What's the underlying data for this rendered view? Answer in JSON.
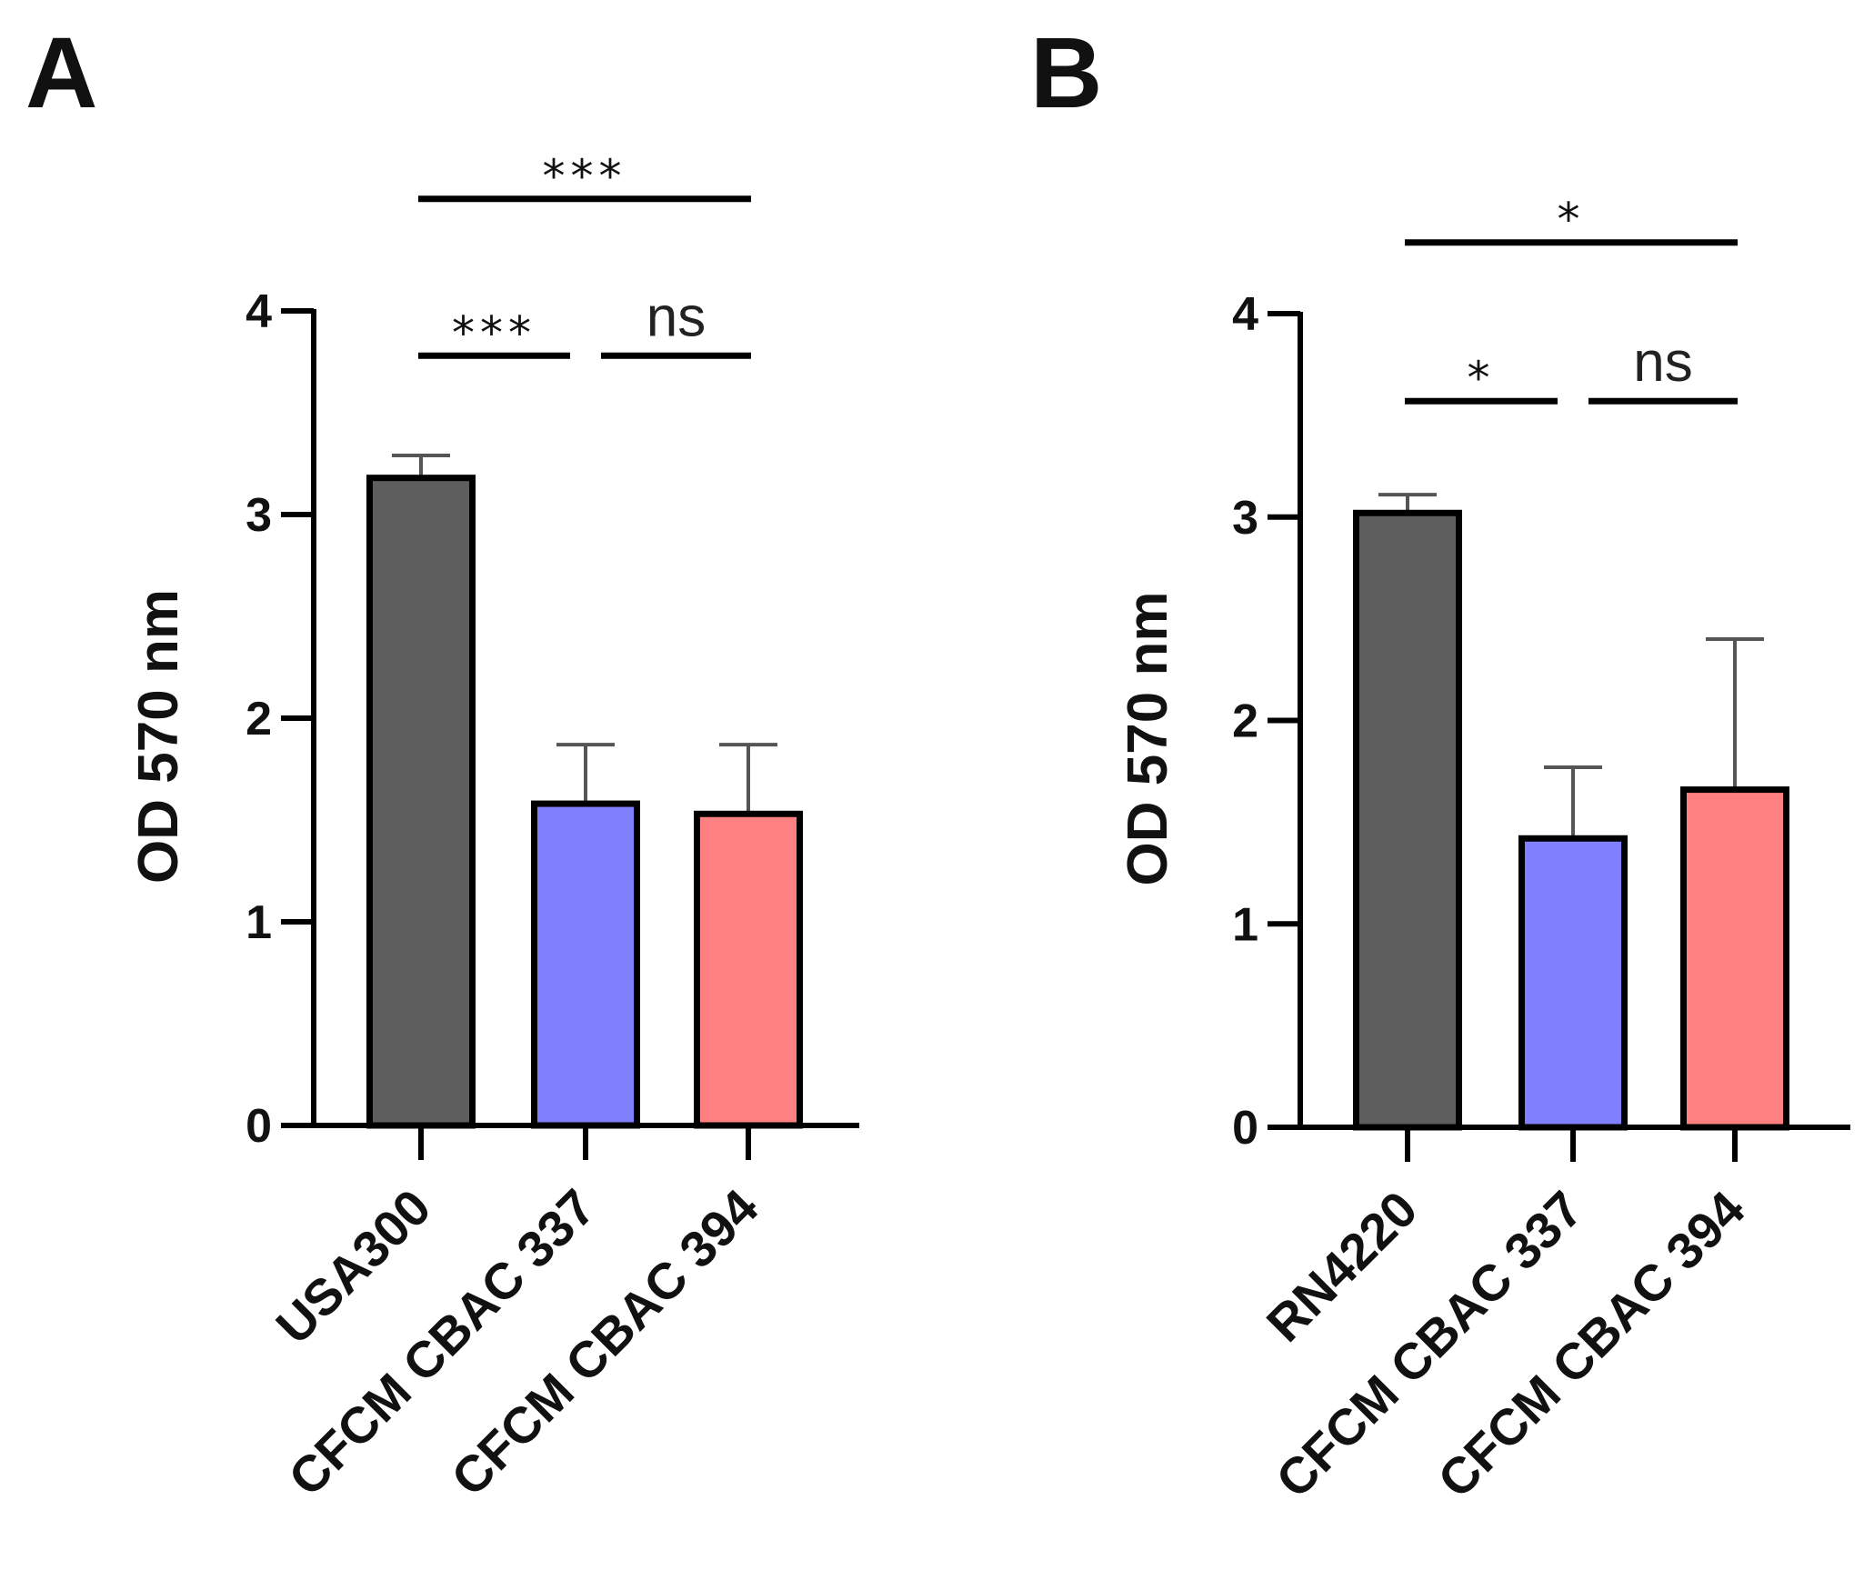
{
  "chart_data": [
    {
      "type": "bar",
      "panel_label": "A",
      "ylabel": "OD 570 nm",
      "ylim": [
        0,
        4
      ],
      "yticks": [
        "0",
        "1",
        "2",
        "3",
        "4"
      ],
      "categories": [
        "USA300",
        "CFCM CBAC 337",
        "CFCM CBAC 394"
      ],
      "values": [
        3.18,
        1.58,
        1.53
      ],
      "errors": [
        0.11,
        0.29,
        0.34
      ],
      "colors": [
        "#5e5e5e",
        "#8080ff",
        "#ff8080"
      ],
      "significance": [
        {
          "from": 0,
          "to": 2,
          "label": "***",
          "level": 4.55
        },
        {
          "from": 0,
          "to": 1,
          "label": "***",
          "level": 3.78
        },
        {
          "from": 1,
          "to": 2,
          "label": "ns",
          "level": 3.78
        }
      ]
    },
    {
      "type": "bar",
      "panel_label": "B",
      "ylabel": "OD 570 nm",
      "ylim": [
        0,
        4
      ],
      "yticks": [
        "0",
        "1",
        "2",
        "3",
        "4"
      ],
      "categories": [
        "RN4220",
        "CFCM CBAC 337",
        "CFCM CBAC 394"
      ],
      "values": [
        3.02,
        1.42,
        1.66
      ],
      "errors": [
        0.09,
        0.35,
        0.74
      ],
      "colors": [
        "#5e5e5e",
        "#8080ff",
        "#ff8080"
      ],
      "significance": [
        {
          "from": 0,
          "to": 2,
          "label": "*",
          "level": 4.35
        },
        {
          "from": 0,
          "to": 1,
          "label": "*",
          "level": 3.57
        },
        {
          "from": 1,
          "to": 2,
          "label": "ns",
          "level": 3.57
        }
      ]
    }
  ]
}
